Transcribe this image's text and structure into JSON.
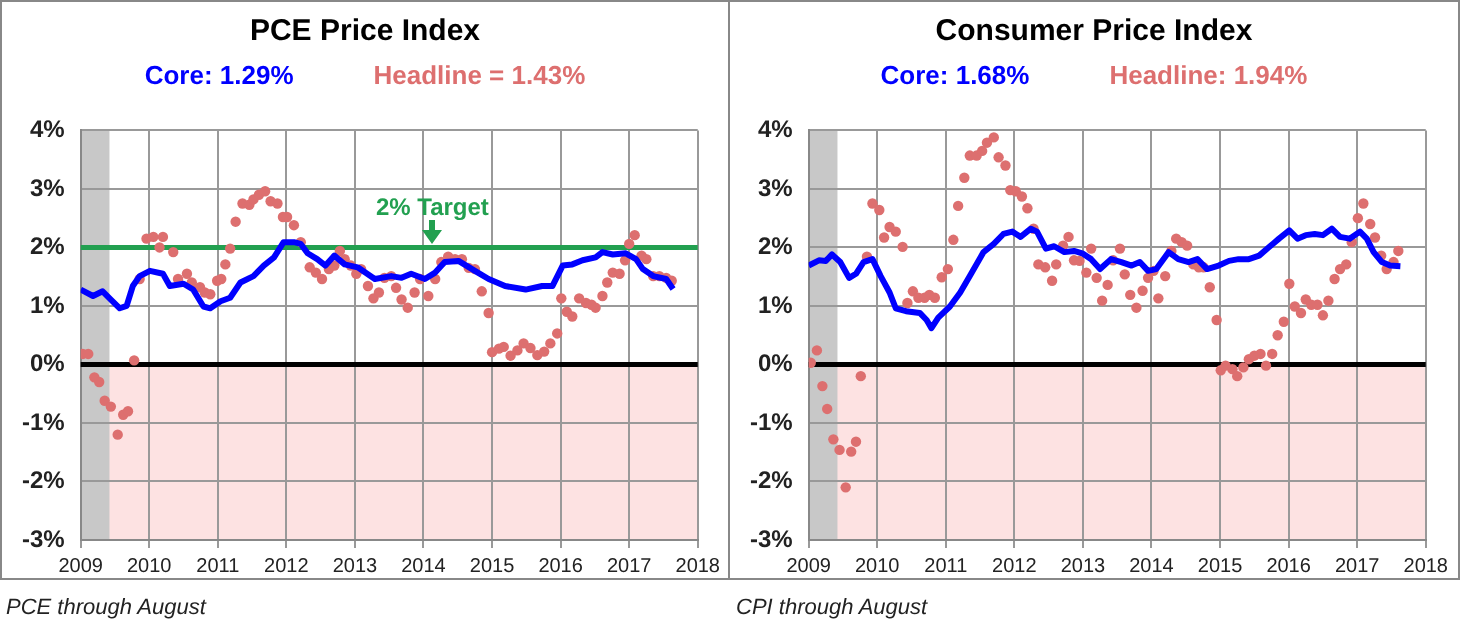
{
  "chart_data": [
    {
      "type": "scatter",
      "title": "PCE Price Index",
      "legend": "top",
      "grid": true,
      "xlim": [
        2009,
        2018
      ],
      "xticks": [
        2009,
        2010,
        2011,
        2012,
        2013,
        2014,
        2015,
        2016,
        2017,
        2018
      ],
      "ylim": [
        -3,
        4
      ],
      "yticks": [
        {
          "value": -3,
          "label": "-3%"
        },
        {
          "value": -2,
          "label": "-2%"
        },
        {
          "value": -1,
          "label": "-1%"
        },
        {
          "value": 0,
          "label": "0%"
        },
        {
          "value": 1,
          "label": "1%"
        },
        {
          "value": 2,
          "label": "2%"
        },
        {
          "value": 3,
          "label": "3%"
        },
        {
          "value": 4,
          "label": "4%"
        }
      ],
      "bands": [
        {
          "axis": "y",
          "from": -3,
          "to": 0,
          "color": "#fde2e2"
        },
        {
          "axis": "x",
          "from": 2009,
          "to": 2009.42,
          "color": "#c8c8c8"
        }
      ],
      "ref_lines": [
        {
          "axis": "y",
          "value": 0,
          "color": "#000000"
        },
        {
          "axis": "y",
          "value": 2,
          "label": "2% Target",
          "color": "#22a050"
        }
      ],
      "series": [
        {
          "name": "Core: 1.29%",
          "type": "line",
          "marker": "none",
          "color": "#0000ff",
          "x": [
            2009.0,
            2009.18,
            2009.32,
            2009.44,
            2009.57,
            2009.67,
            2009.76,
            2009.86,
            2010.01,
            2010.2,
            2010.3,
            2010.5,
            2010.64,
            2010.79,
            2010.89,
            2011.04,
            2011.18,
            2011.33,
            2011.52,
            2011.67,
            2011.82,
            2011.96,
            2012.11,
            2012.21,
            2012.31,
            2012.45,
            2012.57,
            2012.7,
            2012.85,
            2013.04,
            2013.29,
            2013.53,
            2013.68,
            2013.82,
            2014.02,
            2014.17,
            2014.31,
            2014.51,
            2014.75,
            2014.95,
            2015.19,
            2015.49,
            2015.73,
            2015.88,
            2016.03,
            2016.17,
            2016.32,
            2016.51,
            2016.61,
            2016.76,
            2016.95,
            2017.1,
            2017.2,
            2017.35,
            2017.54,
            2017.64
          ],
          "values": [
            1.28,
            1.17,
            1.25,
            1.11,
            0.96,
            1.0,
            1.34,
            1.51,
            1.6,
            1.55,
            1.34,
            1.38,
            1.28,
            0.99,
            0.96,
            1.08,
            1.14,
            1.4,
            1.51,
            1.69,
            1.83,
            2.09,
            2.09,
            2.06,
            1.9,
            1.8,
            1.69,
            1.86,
            1.71,
            1.66,
            1.46,
            1.51,
            1.48,
            1.55,
            1.46,
            1.57,
            1.75,
            1.77,
            1.6,
            1.46,
            1.34,
            1.28,
            1.34,
            1.34,
            1.69,
            1.71,
            1.78,
            1.83,
            1.92,
            1.88,
            1.9,
            1.8,
            1.63,
            1.51,
            1.46,
            1.29
          ]
        },
        {
          "name": "Headline = 1.43%",
          "marker": "circle",
          "color": "#dd6f6f",
          "x": [
            2009.03,
            2009.11,
            2009.2,
            2009.27,
            2009.35,
            2009.44,
            2009.54,
            2009.62,
            2009.69,
            2009.78,
            2009.86,
            2009.96,
            2010.06,
            2010.15,
            2010.2,
            2010.35,
            2010.42,
            2010.55,
            2010.62,
            2010.74,
            2010.81,
            2010.89,
            2010.99,
            2011.05,
            2011.11,
            2011.18,
            2011.26,
            2011.36,
            2011.46,
            2011.52,
            2011.6,
            2011.69,
            2011.77,
            2011.87,
            2011.95,
            2012.01,
            2012.11,
            2012.21,
            2012.34,
            2012.43,
            2012.52,
            2012.62,
            2012.7,
            2012.78,
            2012.85,
            2012.94,
            2013.02,
            2013.09,
            2013.19,
            2013.27,
            2013.35,
            2013.43,
            2013.53,
            2013.6,
            2013.68,
            2013.77,
            2013.87,
            2013.95,
            2014.07,
            2014.17,
            2014.26,
            2014.36,
            2014.46,
            2014.56,
            2014.66,
            2014.75,
            2014.85,
            2014.95,
            2015.0,
            2015.1,
            2015.17,
            2015.27,
            2015.37,
            2015.46,
            2015.56,
            2015.66,
            2015.76,
            2015.85,
            2015.95,
            2016.01,
            2016.09,
            2016.17,
            2016.27,
            2016.37,
            2016.45,
            2016.51,
            2016.61,
            2016.68,
            2016.76,
            2016.86,
            2016.94,
            2017.0,
            2017.08,
            2017.18,
            2017.25,
            2017.35,
            2017.44,
            2017.54,
            2017.62
          ],
          "values": [
            0.18,
            0.18,
            -0.22,
            -0.3,
            -0.62,
            -0.72,
            -1.2,
            -0.86,
            -0.8,
            0.07,
            1.46,
            2.15,
            2.18,
            2.0,
            2.18,
            1.92,
            1.46,
            1.55,
            1.4,
            1.32,
            1.23,
            1.2,
            1.43,
            1.46,
            1.71,
            1.98,
            2.44,
            2.75,
            2.73,
            2.82,
            2.9,
            2.96,
            2.79,
            2.75,
            2.52,
            2.52,
            2.38,
            2.09,
            1.66,
            1.57,
            1.46,
            1.63,
            1.69,
            1.94,
            1.8,
            1.69,
            1.55,
            1.63,
            1.34,
            1.13,
            1.23,
            1.48,
            1.51,
            1.31,
            1.11,
            0.97,
            1.23,
            1.46,
            1.17,
            1.46,
            1.75,
            1.84,
            1.8,
            1.8,
            1.65,
            1.63,
            1.25,
            0.88,
            0.21,
            0.27,
            0.3,
            0.15,
            0.24,
            0.36,
            0.28,
            0.16,
            0.22,
            0.36,
            0.53,
            1.13,
            0.9,
            0.82,
            1.13,
            1.05,
            1.02,
            0.97,
            1.17,
            1.4,
            1.57,
            1.55,
            1.78,
            2.06,
            2.21,
            1.86,
            1.8,
            1.51,
            1.51,
            1.48,
            1.43
          ]
        }
      ],
      "annotations": [
        "PCE through August"
      ]
    },
    {
      "type": "scatter",
      "title": "Consumer Price Index",
      "legend": "top",
      "grid": true,
      "xlim": [
        2009,
        2018
      ],
      "xticks": [
        2009,
        2010,
        2011,
        2012,
        2013,
        2014,
        2015,
        2016,
        2017,
        2018
      ],
      "ylim": [
        -3,
        4
      ],
      "yticks": [
        {
          "value": -3,
          "label": "-3%"
        },
        {
          "value": -2,
          "label": "-2%"
        },
        {
          "value": -1,
          "label": "-1%"
        },
        {
          "value": 0,
          "label": "0%"
        },
        {
          "value": 1,
          "label": "1%"
        },
        {
          "value": 2,
          "label": "2%"
        },
        {
          "value": 3,
          "label": "3%"
        },
        {
          "value": 4,
          "label": "4%"
        }
      ],
      "bands": [
        {
          "axis": "y",
          "from": -3,
          "to": 0,
          "color": "#fde2e2"
        },
        {
          "axis": "x",
          "from": 2009,
          "to": 2009.42,
          "color": "#c8c8c8"
        }
      ],
      "ref_lines": [
        {
          "axis": "y",
          "value": 0,
          "color": "#000000"
        }
      ],
      "series": [
        {
          "name": "Core: 1.68%",
          "type": "line",
          "marker": "none",
          "color": "#0000ff",
          "x": [
            2009.0,
            2009.15,
            2009.25,
            2009.34,
            2009.46,
            2009.59,
            2009.69,
            2009.8,
            2009.93,
            2010.05,
            2010.18,
            2010.27,
            2010.42,
            2010.62,
            2010.72,
            2010.79,
            2010.89,
            2011.06,
            2011.21,
            2011.35,
            2011.55,
            2011.7,
            2011.84,
            2011.97,
            2012.09,
            2012.24,
            2012.33,
            2012.46,
            2012.58,
            2012.73,
            2012.87,
            2012.99,
            2013.12,
            2013.25,
            2013.41,
            2013.56,
            2013.71,
            2013.83,
            2013.95,
            2014.07,
            2014.25,
            2014.39,
            2014.54,
            2014.67,
            2014.81,
            2014.98,
            2015.13,
            2015.27,
            2015.42,
            2015.57,
            2015.72,
            2015.86,
            2016.01,
            2016.13,
            2016.25,
            2016.38,
            2016.5,
            2016.63,
            2016.75,
            2016.89,
            2017.04,
            2017.14,
            2017.24,
            2017.36,
            2017.48,
            2017.63
          ],
          "values": [
            1.69,
            1.78,
            1.77,
            1.88,
            1.75,
            1.48,
            1.55,
            1.75,
            1.8,
            1.51,
            1.23,
            0.96,
            0.91,
            0.88,
            0.76,
            0.62,
            0.8,
            0.99,
            1.23,
            1.51,
            1.92,
            2.06,
            2.23,
            2.27,
            2.18,
            2.32,
            2.27,
            1.98,
            2.02,
            1.92,
            1.94,
            1.9,
            1.8,
            1.63,
            1.8,
            1.75,
            1.69,
            1.75,
            1.6,
            1.63,
            1.92,
            1.8,
            1.75,
            1.8,
            1.63,
            1.69,
            1.77,
            1.8,
            1.8,
            1.86,
            2.01,
            2.15,
            2.29,
            2.15,
            2.21,
            2.23,
            2.21,
            2.32,
            2.18,
            2.15,
            2.27,
            2.15,
            1.92,
            1.75,
            1.69,
            1.68
          ]
        },
        {
          "name": "Headline: 1.94%",
          "marker": "circle",
          "color": "#dd6f6f",
          "x": [
            2009.03,
            2009.12,
            2009.2,
            2009.27,
            2009.36,
            2009.45,
            2009.54,
            2009.62,
            2009.69,
            2009.76,
            2009.85,
            2009.93,
            2010.03,
            2010.1,
            2010.18,
            2010.27,
            2010.37,
            2010.44,
            2010.52,
            2010.6,
            2010.69,
            2010.76,
            2010.84,
            2010.94,
            2011.03,
            2011.11,
            2011.18,
            2011.27,
            2011.35,
            2011.45,
            2011.53,
            2011.6,
            2011.7,
            2011.77,
            2011.87,
            2011.94,
            2012.02,
            2012.11,
            2012.19,
            2012.28,
            2012.35,
            2012.45,
            2012.55,
            2012.61,
            2012.71,
            2012.79,
            2012.87,
            2012.95,
            2013.05,
            2013.12,
            2013.2,
            2013.28,
            2013.36,
            2013.44,
            2013.54,
            2013.61,
            2013.69,
            2013.78,
            2013.87,
            2013.95,
            2014.03,
            2014.1,
            2014.2,
            2014.29,
            2014.36,
            2014.44,
            2014.52,
            2014.61,
            2014.69,
            2014.76,
            2014.85,
            2014.95,
            2015.01,
            2015.08,
            2015.18,
            2015.25,
            2015.34,
            2015.42,
            2015.5,
            2015.59,
            2015.67,
            2015.76,
            2015.84,
            2015.93,
            2016.01,
            2016.09,
            2016.18,
            2016.25,
            2016.33,
            2016.42,
            2016.5,
            2016.58,
            2016.67,
            2016.75,
            2016.84,
            2016.92,
            2017.01,
            2017.09,
            2017.19,
            2017.26,
            2017.35,
            2017.43,
            2017.53,
            2017.6
          ],
          "values": [
            0.03,
            0.24,
            -0.37,
            -0.76,
            -1.28,
            -1.46,
            -2.1,
            -1.49,
            -1.32,
            -0.2,
            1.84,
            2.75,
            2.64,
            2.17,
            2.35,
            2.27,
            2.01,
            1.05,
            1.25,
            1.14,
            1.14,
            1.19,
            1.14,
            1.49,
            1.63,
            2.13,
            2.71,
            3.19,
            3.57,
            3.57,
            3.65,
            3.79,
            3.88,
            3.54,
            3.4,
            2.98,
            2.96,
            2.87,
            2.67,
            2.32,
            1.71,
            1.66,
            1.43,
            1.71,
            2.03,
            2.18,
            1.78,
            1.77,
            1.57,
            1.98,
            1.48,
            1.09,
            1.36,
            1.78,
            1.98,
            1.54,
            1.19,
            0.97,
            1.26,
            1.48,
            1.6,
            1.13,
            1.51,
            1.94,
            2.15,
            2.09,
            2.03,
            1.71,
            1.66,
            1.66,
            1.32,
            0.76,
            -0.1,
            -0.02,
            -0.08,
            -0.2,
            -0.05,
            0.09,
            0.15,
            0.18,
            -0.02,
            0.18,
            0.5,
            0.73,
            1.38,
            0.99,
            0.88,
            1.11,
            1.02,
            1.02,
            0.84,
            1.09,
            1.46,
            1.63,
            1.71,
            2.09,
            2.5,
            2.75,
            2.4,
            2.17,
            1.86,
            1.63,
            1.75,
            1.94
          ]
        }
      ],
      "annotations": [
        "CPI through August"
      ]
    }
  ]
}
